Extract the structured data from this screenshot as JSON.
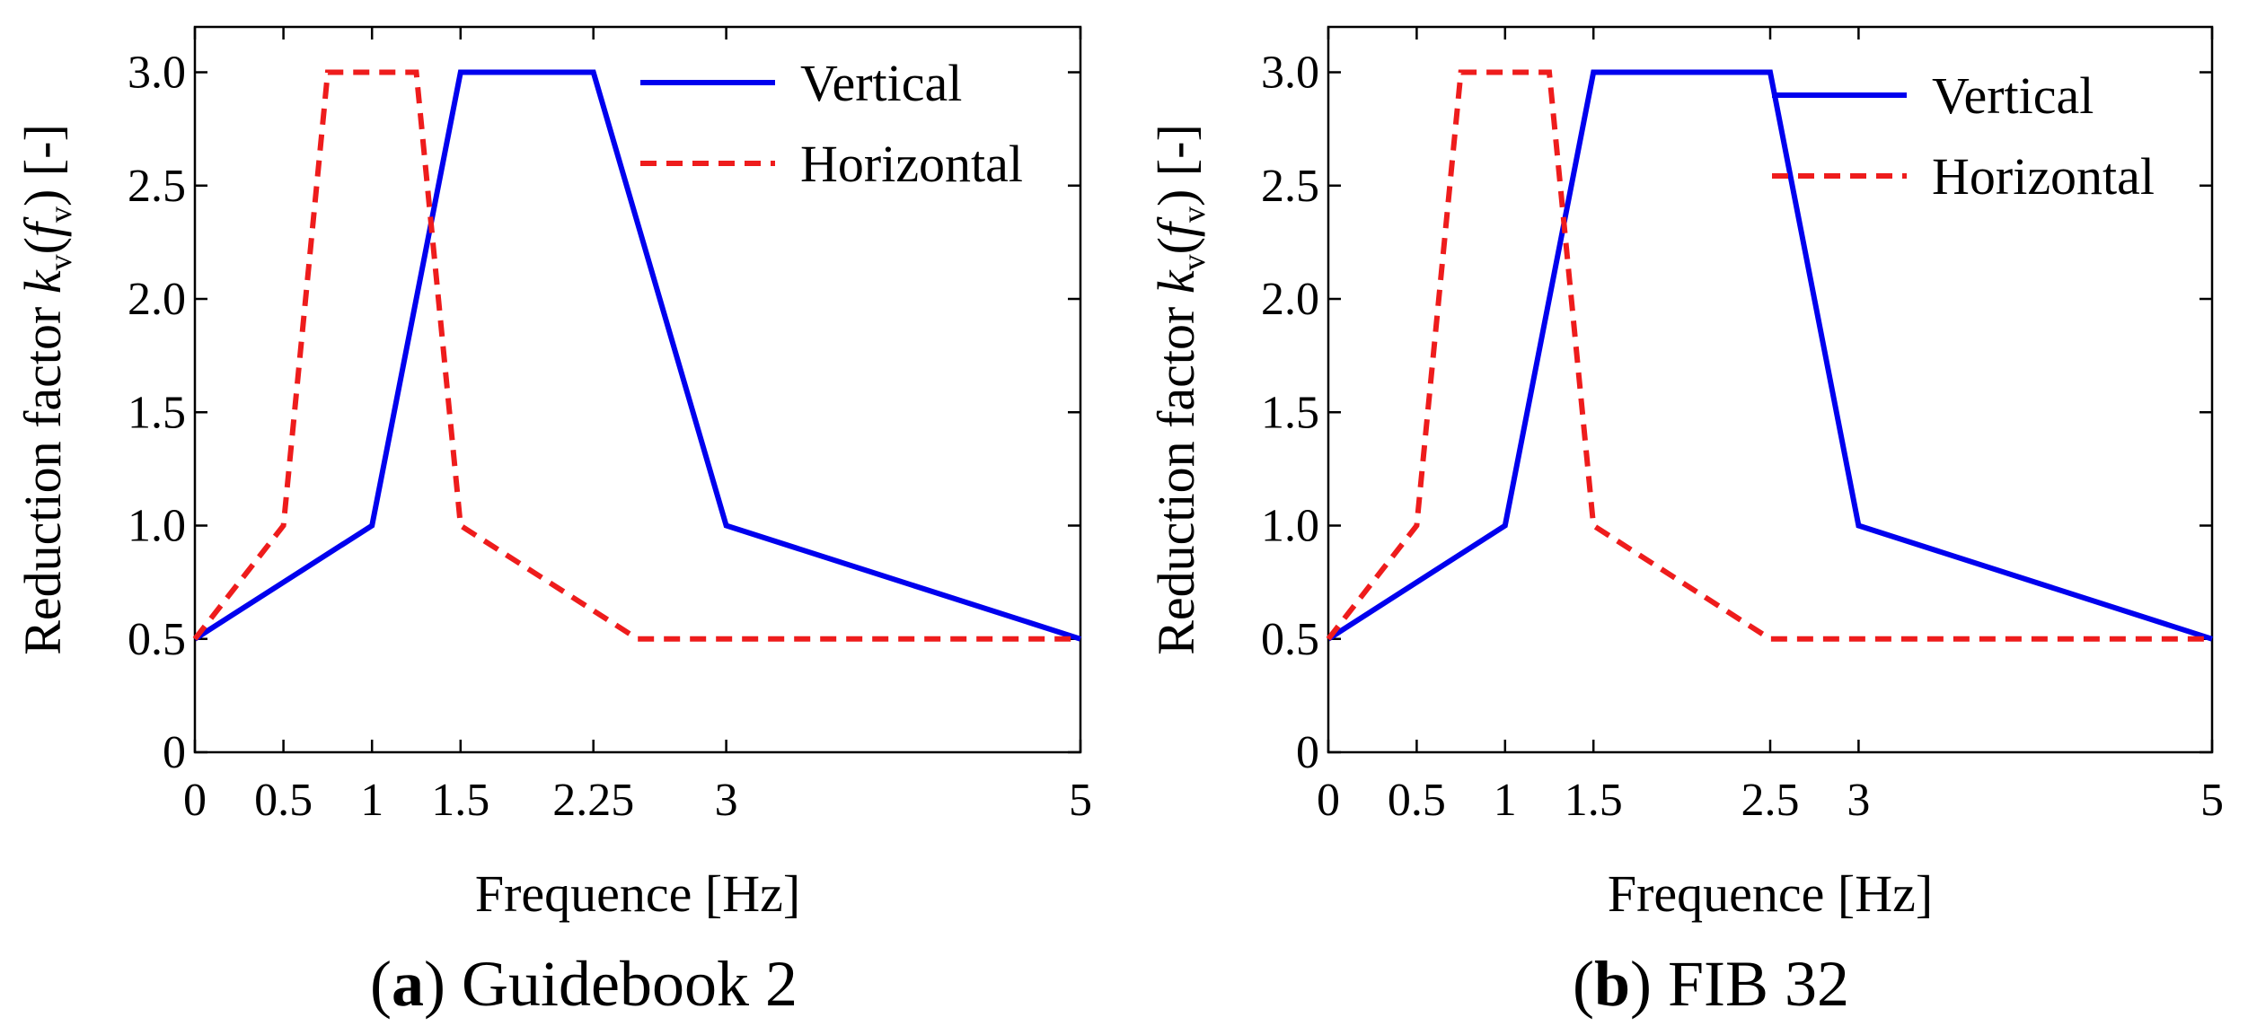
{
  "chart_data": [
    {
      "type": "line",
      "caption_letter": "a",
      "caption_text": " Guidebook 2",
      "xlabel": "Frequence [Hz]",
      "ylabel": "Reduction factor k",
      "ylabel_sub": "v",
      "ylabel_arg_open": "(",
      "ylabel_arg_f": "f",
      "ylabel_arg_sub": "v",
      "ylabel_tail": ") [-]",
      "xlim": [
        0,
        5
      ],
      "ylim": [
        0,
        3.2
      ],
      "xticks": [
        0,
        0.5,
        1,
        1.5,
        2.25,
        3,
        5
      ],
      "xtick_labels": [
        "0",
        "0.5",
        "1",
        "1.5",
        "2.25",
        "3",
        "5"
      ],
      "yticks": [
        0,
        0.5,
        1.0,
        1.5,
        2.0,
        2.5,
        3.0
      ],
      "ytick_labels": [
        "0",
        "0.5",
        "1.0",
        "1.5",
        "2.0",
        "2.5",
        "3.0"
      ],
      "legend_position": "top-right",
      "series": [
        {
          "name": "Vertical",
          "style": "solid",
          "color": "#0000ee",
          "x": [
            0,
            1,
            1.5,
            2.25,
            3,
            5
          ],
          "y": [
            0.5,
            1.0,
            3.0,
            3.0,
            1.0,
            0.5
          ]
        },
        {
          "name": "Horizontal",
          "style": "dashed",
          "color": "#ee1c1c",
          "x": [
            0,
            0.5,
            0.75,
            1.25,
            1.5,
            2.5,
            5
          ],
          "y": [
            0.5,
            1.0,
            3.0,
            3.0,
            1.0,
            0.5,
            0.5
          ]
        }
      ]
    },
    {
      "type": "line",
      "caption_letter": "b",
      "caption_text": " FIB 32",
      "xlabel": "Frequence [Hz]",
      "ylabel": "Reduction factor k",
      "ylabel_sub": "v",
      "ylabel_arg_open": "(",
      "ylabel_arg_f": "f",
      "ylabel_arg_sub": "v",
      "ylabel_tail": ") [-]",
      "xlim": [
        0,
        5
      ],
      "ylim": [
        0,
        3.2
      ],
      "xticks": [
        0,
        0.5,
        1,
        1.5,
        2.5,
        3,
        5
      ],
      "xtick_labels": [
        "0",
        "0.5",
        "1",
        "1.5",
        "2.5",
        "3",
        "5"
      ],
      "yticks": [
        0,
        0.5,
        1.0,
        1.5,
        2.0,
        2.5,
        3.0
      ],
      "ytick_labels": [
        "0",
        "0.5",
        "1.0",
        "1.5",
        "2.0",
        "2.5",
        "3.0"
      ],
      "legend_position": "top-right",
      "series": [
        {
          "name": "Vertical",
          "style": "solid",
          "color": "#0000ee",
          "x": [
            0,
            1,
            1.5,
            2.5,
            3,
            5
          ],
          "y": [
            0.5,
            1.0,
            3.0,
            3.0,
            1.0,
            0.5
          ]
        },
        {
          "name": "Horizontal",
          "style": "dashed",
          "color": "#ee1c1c",
          "x": [
            0,
            0.5,
            0.75,
            1.25,
            1.5,
            2.5,
            5
          ],
          "y": [
            0.5,
            1.0,
            3.0,
            3.0,
            1.0,
            0.5,
            0.5
          ]
        }
      ]
    }
  ]
}
